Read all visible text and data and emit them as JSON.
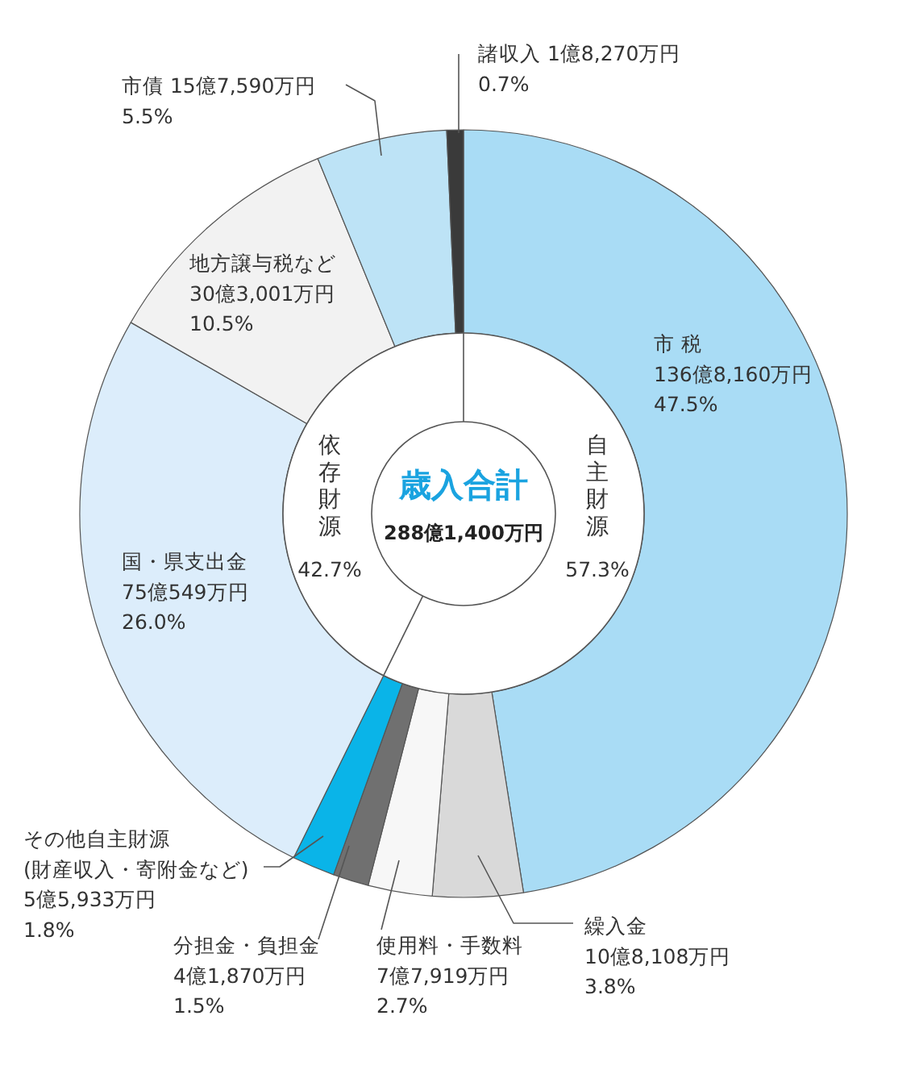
{
  "chart_data": {
    "type": "donut",
    "title": "歳入合計",
    "subtitle": "288億1,400万円",
    "categories": [
      "市 税",
      "繰入金",
      "使用料・手数料",
      "分担金・負担金",
      "その他自主財源\n(財産収入・寄附金など)",
      "国・県支出金",
      "地方譲与税など",
      "市債",
      "諸収入"
    ],
    "values": [
      47.5,
      3.8,
      2.7,
      1.5,
      1.8,
      26.0,
      10.5,
      5.5,
      0.7
    ],
    "colors": [
      "#a9dcf5",
      "#d9d9d9",
      "#f7f7f7",
      "#707070",
      "#0ab4e8",
      "#dcedfb",
      "#f2f2f2",
      "#bde3f6",
      "#3a3a3a"
    ],
    "value_labels": [
      "136億8,160万円\n47.5%",
      "10億8,108万円\n3.8%",
      "7億7,919万円\n2.7%",
      "4億1,870万円\n1.5%",
      "5億5,933万円\n1.8%",
      "75億549万円\n26.0%",
      "30億3,001万円\n10.5%",
      "15億7,590万円\n5.5%",
      "1億8,270万円\n0.7%"
    ],
    "annotations": [
      "自主財源",
      "57.3%",
      "依存財源",
      "42.7%"
    ]
  }
}
